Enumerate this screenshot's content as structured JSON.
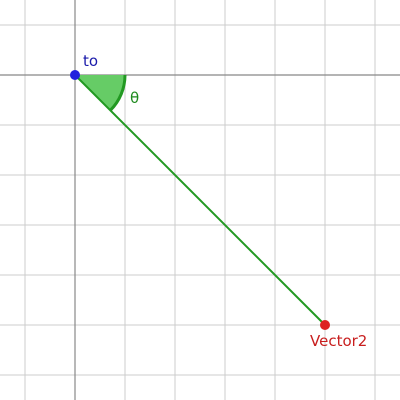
{
  "diagram": {
    "grid": {
      "x_min": -1.5,
      "x_max": 6.5,
      "y_min": -6.5,
      "y_max": 1.5,
      "step": 1,
      "axes_at": [
        0,
        0
      ]
    },
    "points": {
      "from": {
        "label": "to",
        "x": 0,
        "y": 0,
        "color": "#2222dd",
        "label_color": "#1a1aaa"
      },
      "to": {
        "label": "Vector2",
        "x": 5,
        "y": -5,
        "color": "#dd2222",
        "label_color": "#c81e1e"
      }
    },
    "segment": {
      "color": "#229922"
    },
    "angle": {
      "label": "θ",
      "start_deg": 0,
      "end_deg": -45,
      "radius": 1,
      "fill": "#66cc66",
      "stroke": "#229922",
      "label_color": "#1e8a1e"
    },
    "colors": {
      "minor_grid": "#cccccc",
      "major_axis": "#888888"
    }
  }
}
